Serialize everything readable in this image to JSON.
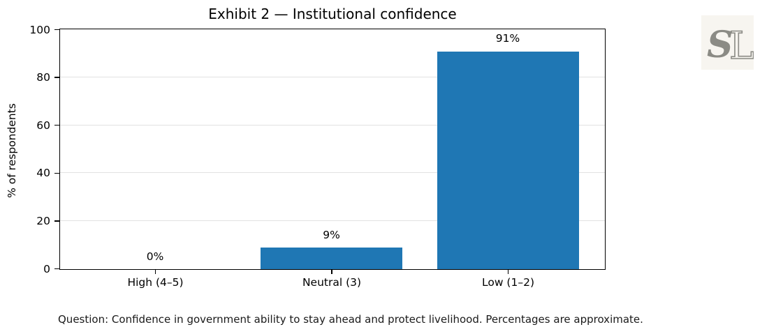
{
  "figure": {
    "background": "#ffffff"
  },
  "chart_data": {
    "type": "bar",
    "title": "Exhibit 2 — Institutional confidence",
    "categories": [
      "High (4–5)",
      "Neutral (3)",
      "Low (1–2)"
    ],
    "values": [
      0,
      9,
      91
    ],
    "value_labels": [
      "0%",
      "9%",
      "91%"
    ],
    "xlabel": "",
    "ylabel": "% of respondents",
    "ylim": [
      0,
      100
    ],
    "yticks": [
      0,
      20,
      40,
      60,
      80,
      100
    ],
    "grid": "horizontal",
    "gridline_color": "#e2e2e2",
    "bar_color": "#1f77b4",
    "axis_color": "#000000",
    "legend_position": "none"
  },
  "logo": {
    "letter_s": "S",
    "letter_l": "L",
    "background": "#f7f5f0",
    "letter_color": "#8b8b85"
  },
  "caption": "Question: Confidence in government ability to stay ahead and protect livelihood. Percentages are approximate."
}
